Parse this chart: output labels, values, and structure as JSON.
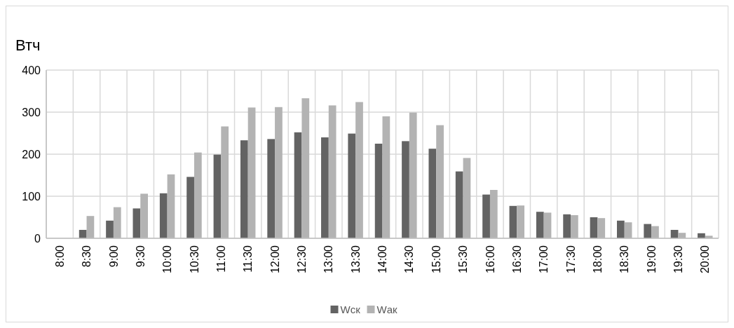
{
  "chart_data": {
    "type": "bar",
    "ylabel": "Втч",
    "categories": [
      "8:00",
      "8:30",
      "9:00",
      "9:30",
      "10:00",
      "10:30",
      "11:00",
      "11:30",
      "12:00",
      "12:30",
      "13:00",
      "13:30",
      "14:00",
      "14:30",
      "15:00",
      "15:30",
      "16:00",
      "16:30",
      "17:00",
      "17:30",
      "18:00",
      "18:30",
      "19:00",
      "19:30",
      "20:00"
    ],
    "series": [
      {
        "name": "Wск",
        "color": "#636363",
        "values": [
          0,
          20,
          42,
          71,
          107,
          146,
          199,
          233,
          236,
          252,
          240,
          249,
          225,
          231,
          213,
          159,
          104,
          77,
          63,
          57,
          50,
          42,
          34,
          20,
          12
        ]
      },
      {
        "name": "Wак",
        "color": "#b3b3b3",
        "values": [
          0,
          53,
          74,
          106,
          152,
          204,
          266,
          311,
          312,
          333,
          316,
          324,
          290,
          299,
          269,
          191,
          115,
          78,
          61,
          55,
          48,
          38,
          29,
          13,
          6
        ]
      }
    ],
    "ylim": [
      0,
      400
    ],
    "yticks": [
      0,
      100,
      200,
      300,
      400
    ],
    "grid": true,
    "legend": "bottom"
  }
}
